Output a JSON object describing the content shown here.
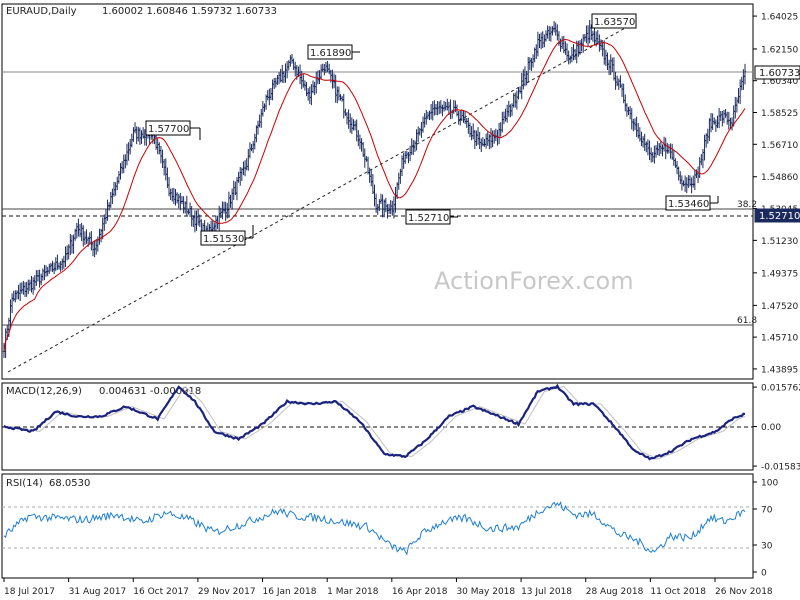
{
  "header": {
    "symbol": "EURAUD,Daily",
    "ohlc": "1.60002 1.60846 1.59732 1.60733"
  },
  "watermark": "ActionForex.com",
  "chart_data": [
    {
      "type": "ohlc",
      "title": "EURAUD,Daily",
      "x_tick_labels": [
        "18 Jul 2017",
        "31 Aug 2017",
        "16 Oct 2017",
        "29 Nov 2017",
        "16 Jan 2018",
        "1 Mar 2018",
        "16 Apr 2018",
        "30 May 2018",
        "13 Jul 2018",
        "28 Aug 2018",
        "11 Oct 2018",
        "26 Nov 2018"
      ],
      "y_tick_labels": [
        "1.64025",
        "1.62150",
        "1.60340",
        "1.58525",
        "1.56710",
        "1.54860",
        "1.53045",
        "1.51230",
        "1.49375",
        "1.47520",
        "1.45710",
        "1.43895"
      ],
      "ylim": [
        1.4389,
        1.6403
      ],
      "current_price": "1.60733",
      "level_labels": [
        "1.60733",
        "1.52710"
      ],
      "fib_labels": [
        "38.2",
        "61.8"
      ],
      "annotations": [
        "1.63570",
        "1.61890",
        "1.57700",
        "1.53460",
        "1.52710",
        "1.51530"
      ],
      "moving_average_color": "#cc0000",
      "bar_color": "#1a2a5e",
      "anchors": [
        [
          0,
          1.452
        ],
        [
          5,
          1.479
        ],
        [
          12,
          1.484
        ],
        [
          28,
          1.495
        ],
        [
          38,
          1.502
        ],
        [
          45,
          1.52
        ],
        [
          56,
          1.508
        ],
        [
          66,
          1.535
        ],
        [
          80,
          1.573
        ],
        [
          92,
          1.574
        ],
        [
          102,
          1.542
        ],
        [
          115,
          1.528
        ],
        [
          125,
          1.516
        ],
        [
          138,
          1.532
        ],
        [
          150,
          1.556
        ],
        [
          162,
          1.593
        ],
        [
          178,
          1.615
        ],
        [
          188,
          1.595
        ],
        [
          198,
          1.612
        ],
        [
          208,
          1.592
        ],
        [
          220,
          1.57
        ],
        [
          230,
          1.533
        ],
        [
          240,
          1.531
        ],
        [
          247,
          1.56
        ],
        [
          256,
          1.572
        ],
        [
          265,
          1.588
        ],
        [
          280,
          1.585
        ],
        [
          295,
          1.566
        ],
        [
          305,
          1.573
        ],
        [
          320,
          1.602
        ],
        [
          330,
          1.625
        ],
        [
          340,
          1.632
        ],
        [
          350,
          1.616
        ],
        [
          362,
          1.631
        ],
        [
          375,
          1.612
        ],
        [
          388,
          1.582
        ],
        [
          400,
          1.56
        ],
        [
          410,
          1.566
        ],
        [
          420,
          1.545
        ],
        [
          428,
          1.548
        ],
        [
          436,
          1.578
        ],
        [
          444,
          1.583
        ],
        [
          450,
          1.58
        ],
        [
          455,
          1.598
        ],
        [
          458,
          1.607
        ]
      ]
    },
    {
      "type": "line",
      "title": "MACD(12,26,9)",
      "values_text": "0.004631 -0.000918",
      "y_tick_labels": [
        "0.015762",
        "0.00",
        "-0.015834"
      ],
      "ylim": [
        -0.0158,
        0.0158
      ],
      "anchors": [
        [
          0,
          0.0
        ],
        [
          18,
          -0.002
        ],
        [
          32,
          0.006
        ],
        [
          45,
          0.004
        ],
        [
          60,
          0.004
        ],
        [
          75,
          0.008
        ],
        [
          95,
          0.003
        ],
        [
          108,
          0.016
        ],
        [
          118,
          0.01
        ],
        [
          130,
          -0.002
        ],
        [
          145,
          -0.005
        ],
        [
          160,
          0.001
        ],
        [
          175,
          0.01
        ],
        [
          190,
          0.009
        ],
        [
          205,
          0.01
        ],
        [
          220,
          0.002
        ],
        [
          235,
          -0.011
        ],
        [
          248,
          -0.012
        ],
        [
          260,
          -0.006
        ],
        [
          275,
          0.004
        ],
        [
          290,
          0.008
        ],
        [
          302,
          0.005
        ],
        [
          318,
          0.001
        ],
        [
          330,
          0.014
        ],
        [
          342,
          0.016
        ],
        [
          352,
          0.009
        ],
        [
          365,
          0.009
        ],
        [
          380,
          -0.002
        ],
        [
          390,
          -0.01
        ],
        [
          400,
          -0.013
        ],
        [
          412,
          -0.01
        ],
        [
          425,
          -0.005
        ],
        [
          440,
          -0.002
        ],
        [
          450,
          0.003
        ],
        [
          458,
          0.005
        ]
      ],
      "signal_lag": 4,
      "line_color": "#1a237e",
      "signal_color": "#c0c0c0"
    },
    {
      "type": "line",
      "title": "RSI(14)",
      "value_text": "68.0530",
      "y_tick_labels": [
        "100",
        "70",
        "30",
        "0"
      ],
      "ylim": [
        0,
        100
      ],
      "anchors": [
        [
          0,
          40
        ],
        [
          15,
          62
        ],
        [
          30,
          60
        ],
        [
          50,
          58
        ],
        [
          70,
          64
        ],
        [
          85,
          55
        ],
        [
          100,
          66
        ],
        [
          115,
          58
        ],
        [
          130,
          44
        ],
        [
          145,
          52
        ],
        [
          160,
          62
        ],
        [
          170,
          68
        ],
        [
          180,
          62
        ],
        [
          195,
          60
        ],
        [
          210,
          55
        ],
        [
          225,
          50
        ],
        [
          238,
          30
        ],
        [
          248,
          22
        ],
        [
          258,
          42
        ],
        [
          270,
          55
        ],
        [
          285,
          60
        ],
        [
          300,
          48
        ],
        [
          318,
          50
        ],
        [
          332,
          70
        ],
        [
          342,
          76
        ],
        [
          352,
          64
        ],
        [
          365,
          64
        ],
        [
          380,
          42
        ],
        [
          390,
          36
        ],
        [
          402,
          22
        ],
        [
          412,
          40
        ],
        [
          425,
          38
        ],
        [
          436,
          60
        ],
        [
          446,
          56
        ],
        [
          458,
          68
        ]
      ],
      "line_color": "#1e7fd2",
      "levels": [
        70,
        30
      ]
    }
  ]
}
